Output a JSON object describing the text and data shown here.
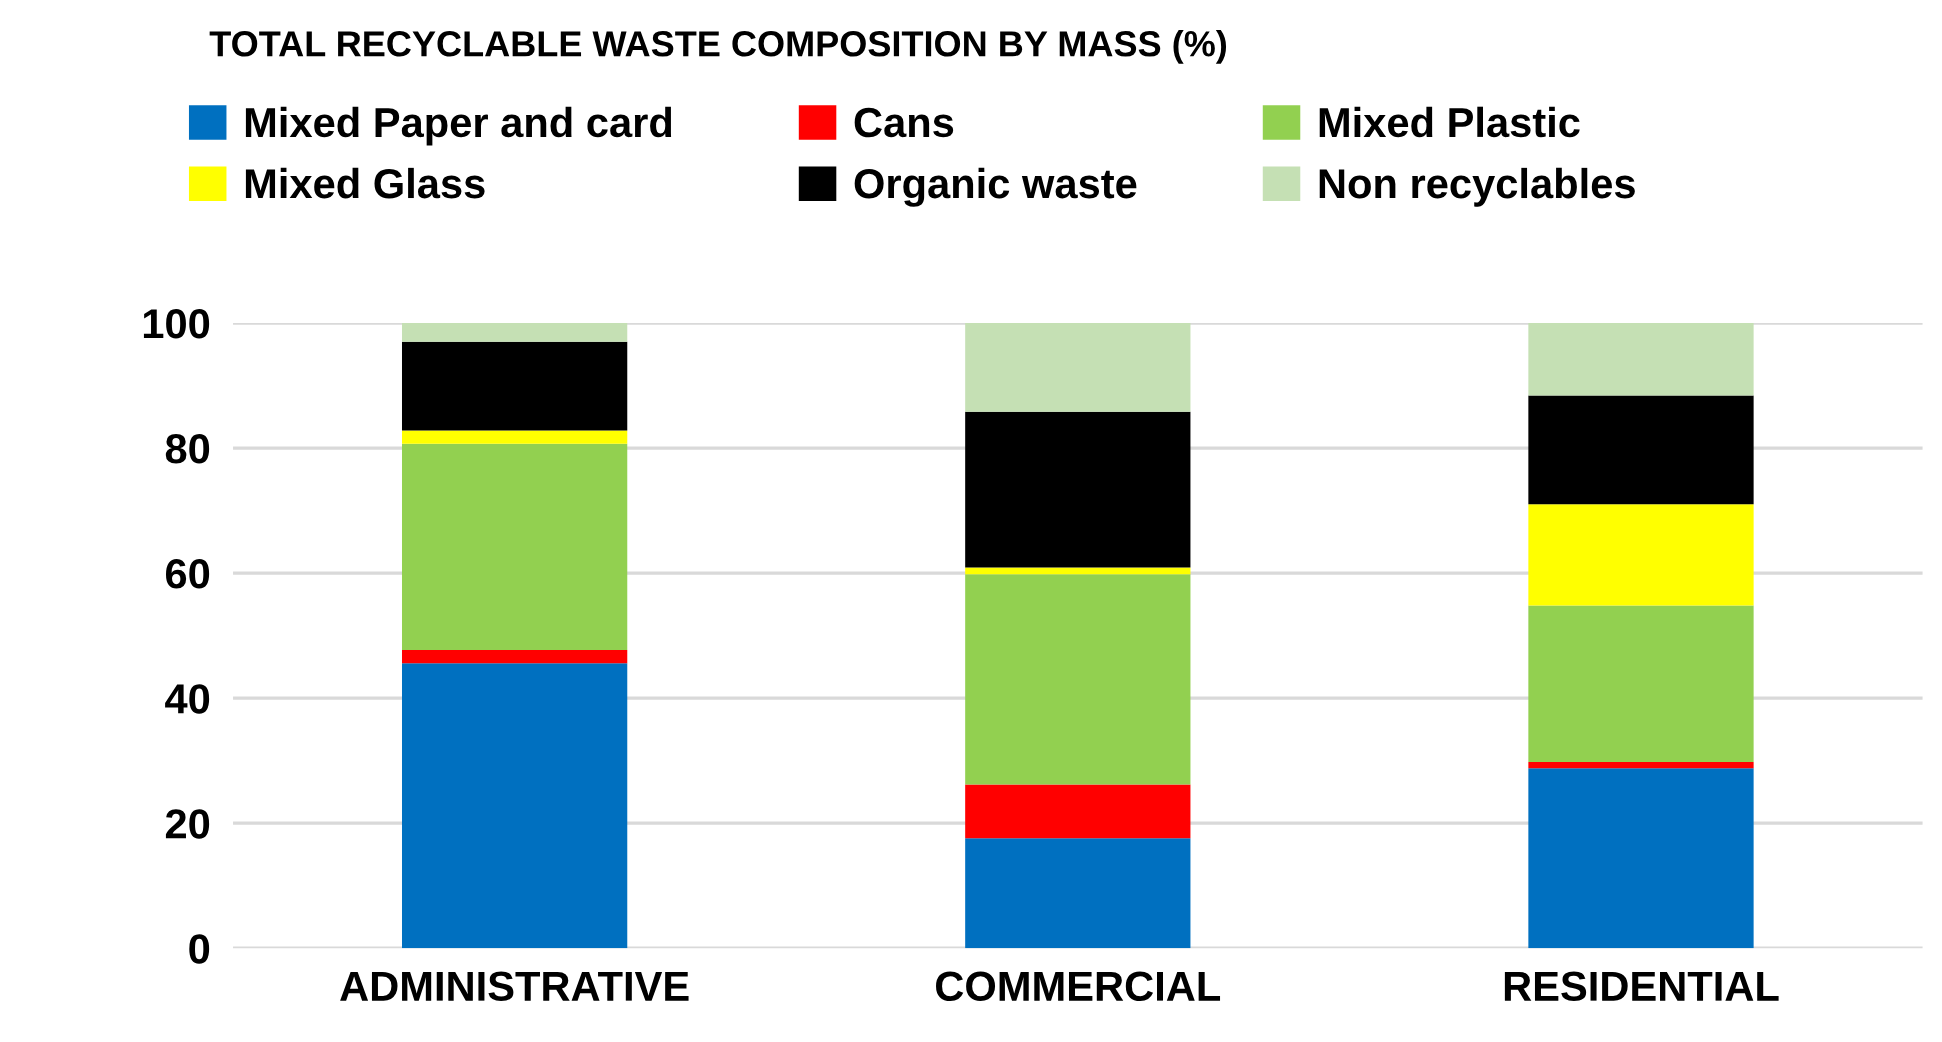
{
  "chart_data": {
    "type": "bar",
    "stacked": true,
    "title": "TOTAL RECYCLABLE WASTE COMPOSITION BY MASS (%)",
    "categories": [
      "ADMINISTRATIVE",
      "COMMERCIAL",
      "RESIDENTIAL"
    ],
    "series": [
      {
        "name": "Mixed Paper and card",
        "color": "#0070c0",
        "values": [
          45.6,
          17.6,
          28.8
        ]
      },
      {
        "name": "Cans",
        "color": "#ff0000",
        "values": [
          2.1,
          8.6,
          1.0
        ]
      },
      {
        "name": "Mixed Plastic",
        "color": "#92d050",
        "values": [
          33.0,
          33.6,
          25.0
        ]
      },
      {
        "name": "Mixed Glass",
        "color": "#ffff00",
        "values": [
          2.1,
          1.1,
          16.2
        ]
      },
      {
        "name": "Organic waste",
        "color": "#000000",
        "values": [
          14.2,
          24.9,
          17.4
        ]
      },
      {
        "name": "Non recyclables",
        "color": "#c5e0b4",
        "values": [
          3.0,
          14.2,
          11.6
        ]
      }
    ],
    "ylim": [
      0,
      100
    ],
    "yticks": [
      0,
      20,
      40,
      60,
      80,
      100
    ],
    "grid": "y",
    "legend": "top"
  }
}
